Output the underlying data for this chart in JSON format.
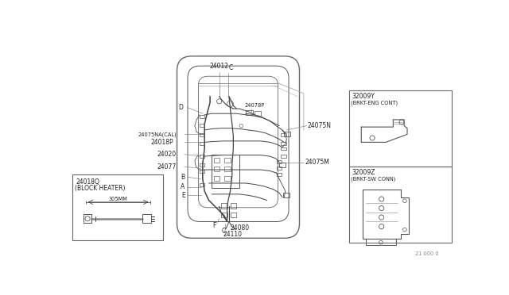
{
  "bg_color": "#ffffff",
  "fig_width": 6.4,
  "fig_height": 3.72,
  "dpi": 100,
  "line_color": "#444444",
  "gray": "#888888",
  "dark": "#333333",
  "fs_main": 5.5,
  "fs_small": 4.8,
  "labels": {
    "24012": "24012",
    "C_top": "C",
    "D": "D",
    "24078P": "24078P",
    "24075N": "24075N",
    "24075NA_CAL": "24075NA(CAL)",
    "24018P": "24018P",
    "24020": "24020",
    "24077": "24077",
    "B": "B",
    "24075M": "24075M",
    "A": "A",
    "E": "E",
    "F": "F",
    "C_bot": "C",
    "24080": "24080",
    "24110": "24110"
  },
  "block_heater_label1": "24018Q",
  "block_heater_label2": "(BLOCK HEATER)",
  "block_heater_dim": "305MM",
  "brkt1_label1": "32009Y",
  "brkt1_label2": "(BRKT-ENG CONT)",
  "brkt2_label1": "32009Z",
  "brkt2_label2": "(BRKT-SW CONN)",
  "diagram_number": "21 000 0"
}
